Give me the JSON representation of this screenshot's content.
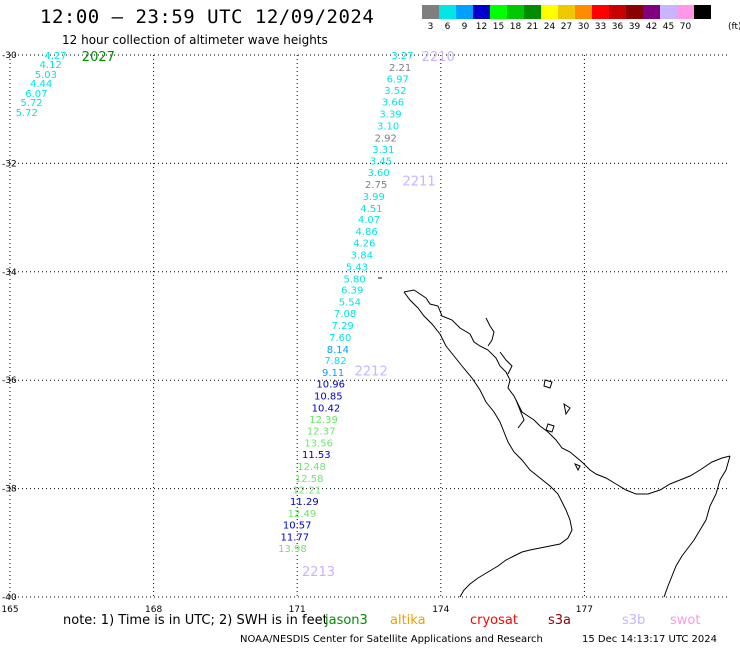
{
  "header": {
    "title": "12:00 — 23:59 UTC 12/09/2024",
    "subtitle": "12 hour collection of altimeter wave heights"
  },
  "legend": {
    "unit": "(ft)",
    "bins": [
      {
        "label": "3",
        "color": "#7f7f7f"
      },
      {
        "label": "6",
        "color": "#00e6e6"
      },
      {
        "label": "9",
        "color": "#00a0ff"
      },
      {
        "label": "12",
        "color": "#0000cd"
      },
      {
        "label": "15",
        "color": "#00ff00"
      },
      {
        "label": "18",
        "color": "#00c800"
      },
      {
        "label": "21",
        "color": "#008c00"
      },
      {
        "label": "24",
        "color": "#ffff00"
      },
      {
        "label": "27",
        "color": "#f0c800"
      },
      {
        "label": "30",
        "color": "#ff8c00"
      },
      {
        "label": "33",
        "color": "#ff0000"
      },
      {
        "label": "36",
        "color": "#c80000"
      },
      {
        "label": "39",
        "color": "#8b0000"
      },
      {
        "label": "42",
        "color": "#800080"
      },
      {
        "label": "45",
        "color": "#c8b4ff"
      },
      {
        "label": "70",
        "color": "#ff96e6"
      },
      {
        "label": "",
        "color": "#000000"
      }
    ]
  },
  "axes": {
    "lon_labels": [
      "165",
      "168",
      "171",
      "174",
      "177"
    ],
    "lat_labels": [
      "-30",
      "-32",
      "-34",
      "-36",
      "-38",
      "-40"
    ]
  },
  "chart_data": {
    "type": "scatter",
    "map_extent": {
      "lon": [
        165,
        180
      ],
      "lat": [
        -40,
        -30
      ]
    },
    "track_times": [
      {
        "label": "2027",
        "color": "#008c00",
        "lon": 166.5,
        "lat": -30.0
      },
      {
        "label": "2210",
        "color": "#c8b4ff",
        "lon": 173.6,
        "lat": -30.0
      },
      {
        "label": "2211",
        "color": "#c8b4ff",
        "lon": 173.2,
        "lat": -32.3
      },
      {
        "label": "2212",
        "color": "#c8b4ff",
        "lon": 172.2,
        "lat": -35.8
      },
      {
        "label": "2213",
        "color": "#c8b4ff",
        "lon": 171.1,
        "lat": -39.5
      }
    ],
    "tracks": [
      {
        "points": [
          {
            "value": "4.27",
            "lon": 165.95,
            "lat": -30.0,
            "color": "#00e6e6"
          },
          {
            "value": "4.12",
            "lon": 165.85,
            "lat": -30.17,
            "color": "#00e6e6"
          },
          {
            "value": "5.03",
            "lon": 165.75,
            "lat": -30.35,
            "color": "#00e6e6"
          },
          {
            "value": "4.44",
            "lon": 165.65,
            "lat": -30.52,
            "color": "#00e6e6"
          },
          {
            "value": "6.07",
            "lon": 165.55,
            "lat": -30.7,
            "color": "#00e6e6"
          },
          {
            "value": "5.72",
            "lon": 165.45,
            "lat": -30.87,
            "color": "#00e6e6"
          },
          {
            "value": "5.72",
            "lon": 165.35,
            "lat": -31.05,
            "color": "#00e6e6"
          }
        ]
      },
      {
        "points": [
          {
            "value": "3.27",
            "lon": 173.2,
            "lat": -30.0,
            "color": "#00e6e6"
          },
          {
            "value": "2.21",
            "lon": 173.15,
            "lat": -30.22,
            "color": "#7f7f7f"
          },
          {
            "value": "6.97",
            "lon": 173.1,
            "lat": -30.43,
            "color": "#00e6e6"
          },
          {
            "value": "3.52",
            "lon": 173.05,
            "lat": -30.65,
            "color": "#00e6e6"
          },
          {
            "value": "3.66",
            "lon": 173.0,
            "lat": -30.86,
            "color": "#00e6e6"
          },
          {
            "value": "3.39",
            "lon": 172.95,
            "lat": -31.08,
            "color": "#00e6e6"
          },
          {
            "value": "3.10",
            "lon": 172.9,
            "lat": -31.3,
            "color": "#00e6e6"
          },
          {
            "value": "2.92",
            "lon": 172.85,
            "lat": -31.52,
            "color": "#7f7f7f"
          },
          {
            "value": "3.31",
            "lon": 172.8,
            "lat": -31.73,
            "color": "#00e6e6"
          },
          {
            "value": "3.45",
            "lon": 172.75,
            "lat": -31.95,
            "color": "#00e6e6"
          },
          {
            "value": "3.60",
            "lon": 172.7,
            "lat": -32.16,
            "color": "#00e6e6"
          },
          {
            "value": "2.75",
            "lon": 172.65,
            "lat": -32.38,
            "color": "#7f7f7f"
          },
          {
            "value": "3.99",
            "lon": 172.6,
            "lat": -32.6,
            "color": "#00e6e6"
          },
          {
            "value": "4.51",
            "lon": 172.55,
            "lat": -32.82,
            "color": "#00e6e6"
          },
          {
            "value": "4.07",
            "lon": 172.5,
            "lat": -33.03,
            "color": "#00e6e6"
          },
          {
            "value": "4.86",
            "lon": 172.45,
            "lat": -33.25,
            "color": "#00e6e6"
          },
          {
            "value": "4.26",
            "lon": 172.4,
            "lat": -33.46,
            "color": "#00e6e6"
          },
          {
            "value": "3.84",
            "lon": 172.35,
            "lat": -33.68,
            "color": "#00e6e6"
          },
          {
            "value": "5.43",
            "lon": 172.25,
            "lat": -33.9,
            "color": "#00e6e6"
          },
          {
            "value": "5.80",
            "lon": 172.2,
            "lat": -34.12,
            "color": "#00e6e6"
          },
          {
            "value": "6.39",
            "lon": 172.15,
            "lat": -34.33,
            "color": "#00e6e6"
          },
          {
            "value": "5.54",
            "lon": 172.1,
            "lat": -34.55,
            "color": "#00e6e6"
          },
          {
            "value": "7.08",
            "lon": 172.0,
            "lat": -34.76,
            "color": "#00e6e6"
          },
          {
            "value": "7.29",
            "lon": 171.95,
            "lat": -34.98,
            "color": "#00e6e6"
          },
          {
            "value": "7.60",
            "lon": 171.9,
            "lat": -35.2,
            "color": "#00e6e6"
          },
          {
            "value": "8.14",
            "lon": 171.85,
            "lat": -35.42,
            "color": "#00a0ff"
          },
          {
            "value": "7.82",
            "lon": 171.8,
            "lat": -35.63,
            "color": "#00e6e6"
          },
          {
            "value": "9.11",
            "lon": 171.75,
            "lat": -35.85,
            "color": "#00a0ff"
          },
          {
            "value": "10.96",
            "lon": 171.7,
            "lat": -36.06,
            "color": "#0000cd"
          },
          {
            "value": "10.85",
            "lon": 171.65,
            "lat": -36.28,
            "color": "#0000cd"
          },
          {
            "value": "10.42",
            "lon": 171.6,
            "lat": -36.5,
            "color": "#0000cd"
          },
          {
            "value": "12.39",
            "lon": 171.55,
            "lat": -36.72,
            "color": "#6ee66e"
          },
          {
            "value": "12.37",
            "lon": 171.5,
            "lat": -36.93,
            "color": "#6ee66e"
          },
          {
            "value": "13.56",
            "lon": 171.45,
            "lat": -37.15,
            "color": "#6ee66e"
          },
          {
            "value": "11.53",
            "lon": 171.4,
            "lat": -37.36,
            "color": "#0000cd"
          },
          {
            "value": "12.48",
            "lon": 171.3,
            "lat": -37.58,
            "color": "#6ee66e"
          },
          {
            "value": "12.58",
            "lon": 171.25,
            "lat": -37.8,
            "color": "#6ee66e"
          },
          {
            "value": "12.21",
            "lon": 171.2,
            "lat": -38.02,
            "color": "#6ee66e"
          },
          {
            "value": "11.29",
            "lon": 171.15,
            "lat": -38.23,
            "color": "#0000cd"
          },
          {
            "value": "12.49",
            "lon": 171.1,
            "lat": -38.45,
            "color": "#6ee66e"
          },
          {
            "value": "10.57",
            "lon": 171.0,
            "lat": -38.66,
            "color": "#0000cd"
          },
          {
            "value": "11.77",
            "lon": 170.95,
            "lat": -38.88,
            "color": "#0000cd"
          },
          {
            "value": "13.98",
            "lon": 170.9,
            "lat": -39.1,
            "color": "#6ee66e"
          }
        ]
      }
    ]
  },
  "footer": {
    "note": "note:  1) Time is in UTC; 2) SWH is in feet",
    "satellites": [
      {
        "name": "jason3",
        "color": "#008c00"
      },
      {
        "name": "altika",
        "color": "#f0a000"
      },
      {
        "name": "cryosat",
        "color": "#ff0000"
      },
      {
        "name": "s3a",
        "color": "#8b0000"
      },
      {
        "name": "s3b",
        "color": "#c8b4ff"
      },
      {
        "name": "swot",
        "color": "#ff96e6"
      }
    ],
    "organization": "NOAA/NESDIS Center for Satellite Applications and Research",
    "timestamp": "15 Dec 14:13:17 UTC 2024"
  }
}
